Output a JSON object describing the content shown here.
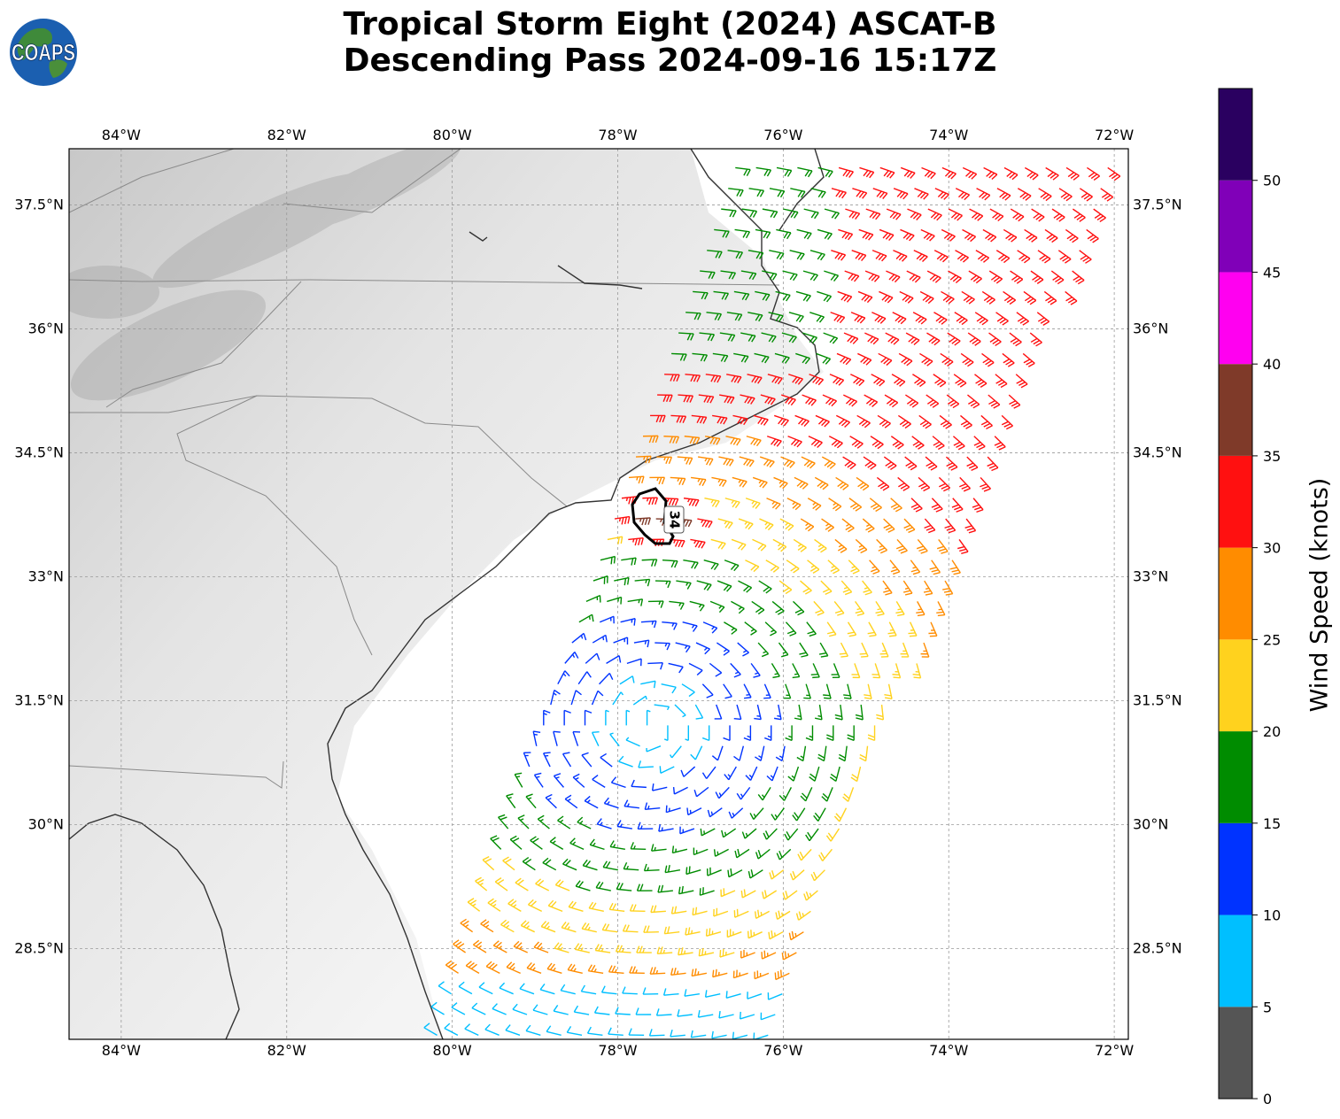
{
  "title": {
    "line1": "Tropical Storm Eight (2024) ASCAT-B",
    "line2": "Descending Pass 2024-09-16 15:17Z"
  },
  "logo": {
    "text": "COAPS",
    "icon": "globe-icon"
  },
  "map": {
    "lon_range": [
      -84.63,
      -71.83
    ],
    "lat_range": [
      27.4,
      38.18
    ],
    "lon_ticks": [
      {
        "value": -84,
        "label": "84°W"
      },
      {
        "value": -82,
        "label": "82°W"
      },
      {
        "value": -80,
        "label": "80°W"
      },
      {
        "value": -78,
        "label": "78°W"
      },
      {
        "value": -76,
        "label": "76°W"
      },
      {
        "value": -74,
        "label": "74°W"
      },
      {
        "value": -72,
        "label": "72°W"
      }
    ],
    "lat_ticks": [
      {
        "value": 37.5,
        "label": "37.5°N"
      },
      {
        "value": 36,
        "label": "36°N"
      },
      {
        "value": 34.5,
        "label": "34.5°N"
      },
      {
        "value": 33,
        "label": "33°N"
      },
      {
        "value": 31.5,
        "label": "31.5°N"
      },
      {
        "value": 30,
        "label": "30°N"
      },
      {
        "value": 28.5,
        "label": "28.5°N"
      }
    ],
    "gridlines": true,
    "storm_center": {
      "lon": -77.6,
      "lat": 31.2
    },
    "contour": {
      "label": "34",
      "center_lon": -77.5,
      "center_lat": 33.7
    }
  },
  "colorbar": {
    "title": "Wind Speed (knots)",
    "ticks": [
      "0",
      "5",
      "10",
      "15",
      "20",
      "25",
      "30",
      "35",
      "40",
      "45",
      "50"
    ],
    "bins": [
      {
        "from": 0,
        "to": 5,
        "color": "#555555"
      },
      {
        "from": 5,
        "to": 10,
        "color": "#00bfff"
      },
      {
        "from": 10,
        "to": 15,
        "color": "#0033ff"
      },
      {
        "from": 15,
        "to": 20,
        "color": "#008c00"
      },
      {
        "from": 20,
        "to": 25,
        "color": "#ffd21e"
      },
      {
        "from": 25,
        "to": 30,
        "color": "#ff8c00"
      },
      {
        "from": 30,
        "to": 35,
        "color": "#ff1010"
      },
      {
        "from": 35,
        "to": 40,
        "color": "#7f3a29"
      },
      {
        "from": 40,
        "to": 45,
        "color": "#ff00f0"
      },
      {
        "from": 45,
        "to": 50,
        "color": "#8000b8"
      },
      {
        "from": 50,
        "to": 55,
        "color": "#2a0060"
      }
    ]
  }
}
